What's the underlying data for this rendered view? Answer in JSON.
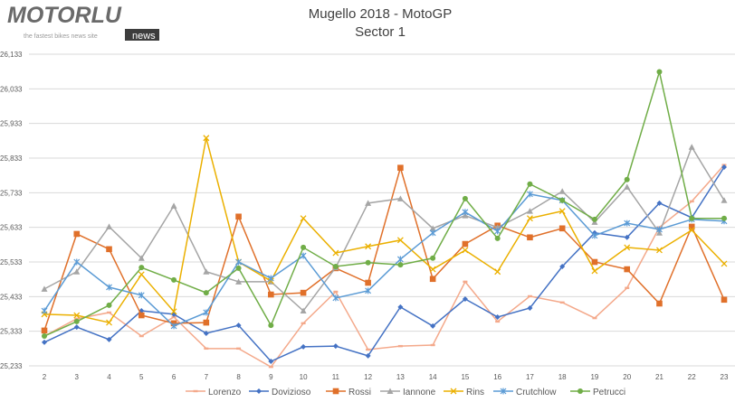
{
  "logo": {
    "brand": "MOTORLU",
    "tagline": "the fastest bikes news site",
    "badge": "news"
  },
  "chart_data": {
    "type": "line",
    "title": "Mugello 2018 - MotoGP",
    "subtitle": "Sector 1",
    "xlabel": "",
    "ylabel": "",
    "x": [
      2,
      3,
      4,
      5,
      6,
      7,
      8,
      9,
      10,
      11,
      12,
      13,
      14,
      15,
      16,
      17,
      18,
      19,
      20,
      21,
      22,
      23
    ],
    "ylim": [
      25.233,
      26.133
    ],
    "yticks": [
      "25,233",
      "25,333",
      "25,433",
      "25,533",
      "25,633",
      "25,733",
      "25,833",
      "25,933",
      "26,033",
      "26,133"
    ],
    "grid": true,
    "legend": "bottom",
    "series": [
      {
        "name": "Lorenzo",
        "color": "#F4A98B",
        "marker": "dash",
        "values": [
          25.319,
          25.369,
          25.387,
          25.319,
          25.374,
          25.283,
          25.283,
          25.23,
          25.356,
          25.447,
          25.28,
          25.29,
          25.293,
          25.476,
          25.361,
          25.434,
          25.416,
          25.371,
          25.458,
          25.633,
          25.708,
          25.813
        ]
      },
      {
        "name": "Dovizioso",
        "color": "#4472C4",
        "marker": "diamond",
        "values": [
          25.301,
          25.345,
          25.309,
          25.392,
          25.382,
          25.327,
          25.35,
          25.246,
          25.288,
          25.29,
          25.262,
          25.403,
          25.348,
          25.426,
          25.374,
          25.4,
          25.52,
          25.617,
          25.604,
          25.703,
          25.661,
          25.807
        ]
      },
      {
        "name": "Rossi",
        "color": "#E0702A",
        "marker": "square",
        "values": [
          25.335,
          25.614,
          25.57,
          25.379,
          25.356,
          25.358,
          25.664,
          25.439,
          25.444,
          25.515,
          25.473,
          25.805,
          25.484,
          25.585,
          25.638,
          25.604,
          25.63,
          25.533,
          25.512,
          25.413,
          25.635,
          25.424
        ]
      },
      {
        "name": "Iannone",
        "color": "#A5A5A5",
        "marker": "triangle",
        "values": [
          25.455,
          25.505,
          25.635,
          25.544,
          25.695,
          25.505,
          25.476,
          25.476,
          25.392,
          25.517,
          25.703,
          25.716,
          25.63,
          25.667,
          25.633,
          25.68,
          25.737,
          25.648,
          25.75,
          25.617,
          25.865,
          25.711
        ]
      },
      {
        "name": "Rins",
        "color": "#EBB000",
        "marker": "x",
        "values": [
          25.382,
          25.379,
          25.358,
          25.497,
          25.39,
          25.891,
          25.533,
          25.478,
          25.659,
          25.559,
          25.578,
          25.596,
          25.512,
          25.567,
          25.505,
          25.659,
          25.68,
          25.507,
          25.575,
          25.567,
          25.625,
          25.528
        ]
      },
      {
        "name": "Crutchlow",
        "color": "#5B9BD5",
        "marker": "asterisk",
        "values": [
          25.392,
          25.533,
          25.46,
          25.437,
          25.348,
          25.387,
          25.533,
          25.486,
          25.551,
          25.429,
          25.45,
          25.541,
          25.617,
          25.677,
          25.622,
          25.729,
          25.711,
          25.609,
          25.645,
          25.627,
          25.656,
          25.651
        ]
      },
      {
        "name": "Petrucci",
        "color": "#70AD47",
        "marker": "circle",
        "values": [
          25.319,
          25.361,
          25.408,
          25.517,
          25.481,
          25.444,
          25.515,
          25.35,
          25.575,
          25.52,
          25.531,
          25.525,
          25.544,
          25.716,
          25.601,
          25.758,
          25.711,
          25.656,
          25.771,
          26.082,
          25.659,
          25.659
        ]
      }
    ]
  }
}
